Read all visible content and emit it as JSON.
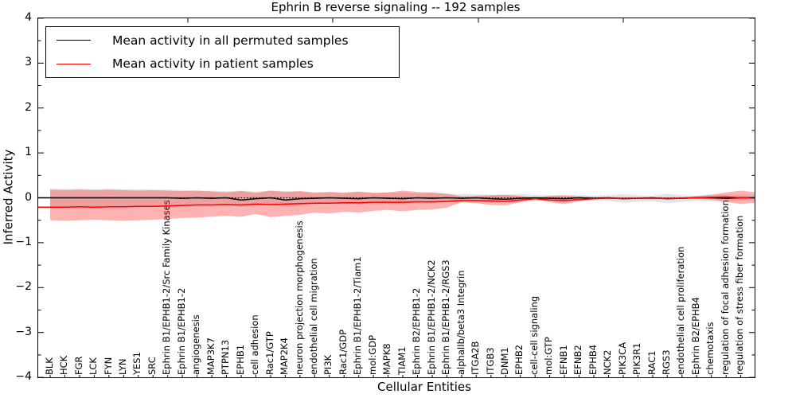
{
  "figure": {
    "title": "Ephrin B reverse signaling -- 192 samples",
    "xlabel": "Cellular Entities",
    "ylabel": "Inferred Activity"
  },
  "chart_data": {
    "type": "line",
    "title": "Ephrin B reverse signaling -- 192 samples",
    "xlabel": "Cellular Entities",
    "ylabel": "Inferred Activity",
    "ylim": [
      -4,
      4
    ],
    "yticks": [
      4,
      3,
      2,
      1,
      0,
      -1,
      -2,
      -3,
      -4
    ],
    "grid": false,
    "legend_position": "upper left",
    "categories": [
      "BLK",
      "HCK",
      "FGR",
      "LCK",
      "FYN",
      "LYN",
      "YES1",
      "SRC",
      "Ephrin B1/EPHB1-2/Src Family Kinases",
      "Ephrin B1/EPHB1-2",
      "angiogenesis",
      "MAP3K7",
      "PTPN13",
      "EPHB1",
      "cell adhesion",
      "Rac1/GTP",
      "MAP2K4",
      "neuron projection morphogenesis",
      "endothelial cell migration",
      "PI3K",
      "Rac1/GDP",
      "Ephrin B1/EPHB1-2/Tiam1",
      "mol:GDP",
      "MAPK8",
      "TIAM1",
      "Ephrin B2/EPHB1-2",
      "Ephrin B1/EPHB1-2/NCK2",
      "Ephrin B1/EPHB1-2/RGS3",
      "alphaIIb/beta3 Integrin",
      "ITGA2B",
      "ITGB3",
      "DNM1",
      "EPHB2",
      "cell-cell signaling",
      "mol:GTP",
      "EFNB1",
      "EFNB2",
      "EPHB4",
      "NCK2",
      "PIK3CA",
      "PIK3R1",
      "RAC1",
      "RGS3",
      "endothelial cell proliferation",
      "Ephrin B2/EPHB4",
      "chemotaxis",
      "regulation of focal adhesion formation",
      "regulation of stress fiber formation"
    ],
    "series": [
      {
        "name": "Mean activity in all permuted samples",
        "color": "#000000",
        "line_style": "solid",
        "values": [
          0.0,
          0.0,
          0.0,
          0.0,
          0.0,
          0.0,
          0.0,
          0.0,
          0.0,
          -0.01,
          0.0,
          -0.01,
          0.0,
          -0.05,
          -0.02,
          0.0,
          -0.05,
          -0.02,
          -0.01,
          0.0,
          -0.01,
          -0.02,
          0.0,
          -0.01,
          -0.02,
          0.0,
          -0.01,
          0.0,
          -0.01,
          0.0,
          -0.02,
          -0.03,
          -0.01,
          0.0,
          -0.01,
          -0.02,
          0.0,
          -0.01,
          0.0,
          -0.02,
          -0.01,
          0.0,
          -0.02,
          -0.01,
          0.0,
          0.0,
          -0.01,
          0.0
        ]
      },
      {
        "name": "Mean activity in patient samples",
        "color": "#ff0000",
        "line_style": "solid",
        "values": [
          -0.21,
          -0.21,
          -0.2,
          -0.21,
          -0.2,
          -0.2,
          -0.19,
          -0.19,
          -0.18,
          -0.17,
          -0.16,
          -0.16,
          -0.15,
          -0.16,
          -0.14,
          -0.15,
          -0.14,
          -0.13,
          -0.12,
          -0.12,
          -0.11,
          -0.11,
          -0.1,
          -0.1,
          -0.1,
          -0.09,
          -0.09,
          -0.08,
          -0.06,
          -0.06,
          -0.07,
          -0.08,
          -0.05,
          -0.02,
          -0.05,
          -0.06,
          -0.04,
          -0.02,
          -0.01,
          -0.01,
          -0.01,
          -0.01,
          -0.01,
          -0.01,
          0.0,
          0.01,
          0.02,
          0.0
        ]
      }
    ],
    "bands": [
      {
        "name": "permuted samples band",
        "color": "#888888",
        "opacity": 0.22,
        "upper": [
          0.2,
          0.2,
          0.2,
          0.19,
          0.2,
          0.19,
          0.19,
          0.18,
          0.18,
          0.17,
          0.16,
          0.16,
          0.15,
          0.16,
          0.14,
          0.16,
          0.15,
          0.14,
          0.13,
          0.13,
          0.12,
          0.13,
          0.11,
          0.12,
          0.12,
          0.1,
          0.11,
          0.09,
          0.08,
          0.08,
          0.07,
          0.06,
          0.09,
          0.06,
          0.06,
          0.07,
          0.06,
          0.05,
          0.06,
          0.08,
          0.06,
          0.05,
          0.09,
          0.06,
          0.05,
          0.06,
          0.07,
          0.06
        ],
        "lower": [
          -0.2,
          -0.2,
          -0.2,
          -0.19,
          -0.2,
          -0.19,
          -0.19,
          -0.18,
          -0.18,
          -0.18,
          -0.16,
          -0.17,
          -0.15,
          -0.21,
          -0.17,
          -0.16,
          -0.2,
          -0.17,
          -0.14,
          -0.13,
          -0.13,
          -0.15,
          -0.11,
          -0.13,
          -0.14,
          -0.1,
          -0.12,
          -0.09,
          -0.09,
          -0.08,
          -0.09,
          -0.1,
          -0.11,
          -0.06,
          -0.07,
          -0.1,
          -0.06,
          -0.06,
          -0.07,
          -0.11,
          -0.09,
          -0.08,
          -0.12,
          -0.09,
          -0.07,
          -0.08,
          -0.09,
          -0.06
        ]
      },
      {
        "name": "patient samples band",
        "color": "#ff0000",
        "opacity": 0.3,
        "upper": [
          0.18,
          0.17,
          0.18,
          0.17,
          0.18,
          0.17,
          0.16,
          0.17,
          0.16,
          0.15,
          0.16,
          0.14,
          0.12,
          0.15,
          0.11,
          0.16,
          0.13,
          0.15,
          0.11,
          0.13,
          0.11,
          0.14,
          0.11,
          0.12,
          0.16,
          0.13,
          0.12,
          0.09,
          0.03,
          0.04,
          0.06,
          0.07,
          0.04,
          0.01,
          0.04,
          0.05,
          0.03,
          0.01,
          0.0,
          0.0,
          0.0,
          0.0,
          0.0,
          0.01,
          0.04,
          0.07,
          0.12,
          0.16
        ],
        "lower": [
          -0.5,
          -0.51,
          -0.5,
          -0.49,
          -0.5,
          -0.51,
          -0.5,
          -0.49,
          -0.47,
          -0.45,
          -0.44,
          -0.42,
          -0.4,
          -0.42,
          -0.36,
          -0.43,
          -0.4,
          -0.38,
          -0.33,
          -0.35,
          -0.31,
          -0.33,
          -0.29,
          -0.27,
          -0.3,
          -0.27,
          -0.26,
          -0.22,
          -0.1,
          -0.12,
          -0.16,
          -0.17,
          -0.1,
          -0.03,
          -0.1,
          -0.14,
          -0.08,
          -0.03,
          -0.03,
          -0.03,
          -0.03,
          -0.03,
          -0.03,
          -0.02,
          -0.02,
          -0.04,
          -0.09,
          -0.14
        ]
      }
    ],
    "reference_line": {
      "y": 0,
      "style": "dotted",
      "color": "#000000"
    }
  }
}
